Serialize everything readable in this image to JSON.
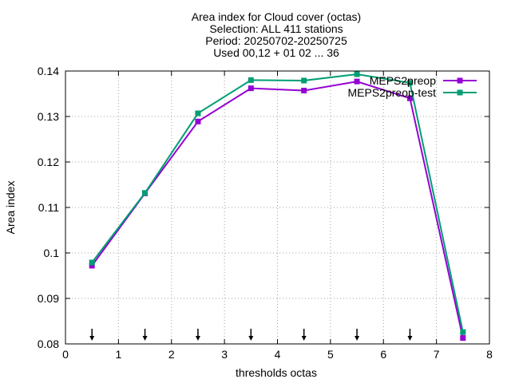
{
  "chart_data": {
    "type": "line",
    "title_lines": [
      "Area index  for Cloud cover (octas)",
      "Selection: ALL    411 stations",
      "Period: 20250702-20250725",
      "Used 00,12 + 01 02 ... 36"
    ],
    "xlabel": "thresholds octas",
    "ylabel": "Area index",
    "xlim": [
      0,
      8
    ],
    "ylim": [
      0.08,
      0.14
    ],
    "xticks": [
      0,
      1,
      2,
      3,
      4,
      5,
      6,
      7,
      8
    ],
    "xtick_labels": [
      "0",
      "1",
      "2",
      "3",
      "4",
      "5",
      "6",
      "7",
      "8"
    ],
    "yticks": [
      0.08,
      0.09,
      0.1,
      0.11,
      0.12,
      0.13,
      0.14
    ],
    "ytick_labels": [
      "0.08",
      "0.09",
      "0.1",
      "0.11",
      "0.12",
      "0.13",
      "0.14"
    ],
    "grid": true,
    "legend_position": "top-right",
    "x": [
      0.5,
      1.5,
      2.5,
      3.5,
      4.5,
      5.5,
      6.5,
      7.5
    ],
    "series": [
      {
        "name": "MEPS2preop",
        "color": "#9400d3",
        "values": [
          0.0972,
          0.1131,
          0.1289,
          0.1362,
          0.1357,
          0.1377,
          0.134,
          0.0813
        ]
      },
      {
        "name": "MEPS2preop-test",
        "color": "#009e73",
        "values": [
          0.0979,
          0.1132,
          0.1307,
          0.138,
          0.1379,
          0.1393,
          0.1374,
          0.0826
        ]
      }
    ],
    "arrow_markers_x": [
      0.5,
      1.5,
      2.5,
      3.5,
      4.5,
      5.5,
      6.5
    ]
  }
}
